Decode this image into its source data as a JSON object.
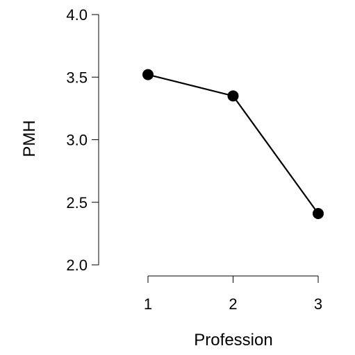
{
  "chart_data": {
    "type": "line",
    "title": "",
    "xlabel": "Profession",
    "ylabel": "PMH",
    "x": [
      1,
      2,
      3
    ],
    "x_ticks": [
      "1",
      "2",
      "3"
    ],
    "y": [
      3.52,
      3.35,
      2.41
    ],
    "y_ticks": [
      "2.0",
      "2.5",
      "3.0",
      "3.5",
      "4.0"
    ],
    "xlim": [
      1,
      3
    ],
    "ylim": [
      2.0,
      4.0
    ],
    "grid": false,
    "legend": "none",
    "color": "#000000"
  }
}
